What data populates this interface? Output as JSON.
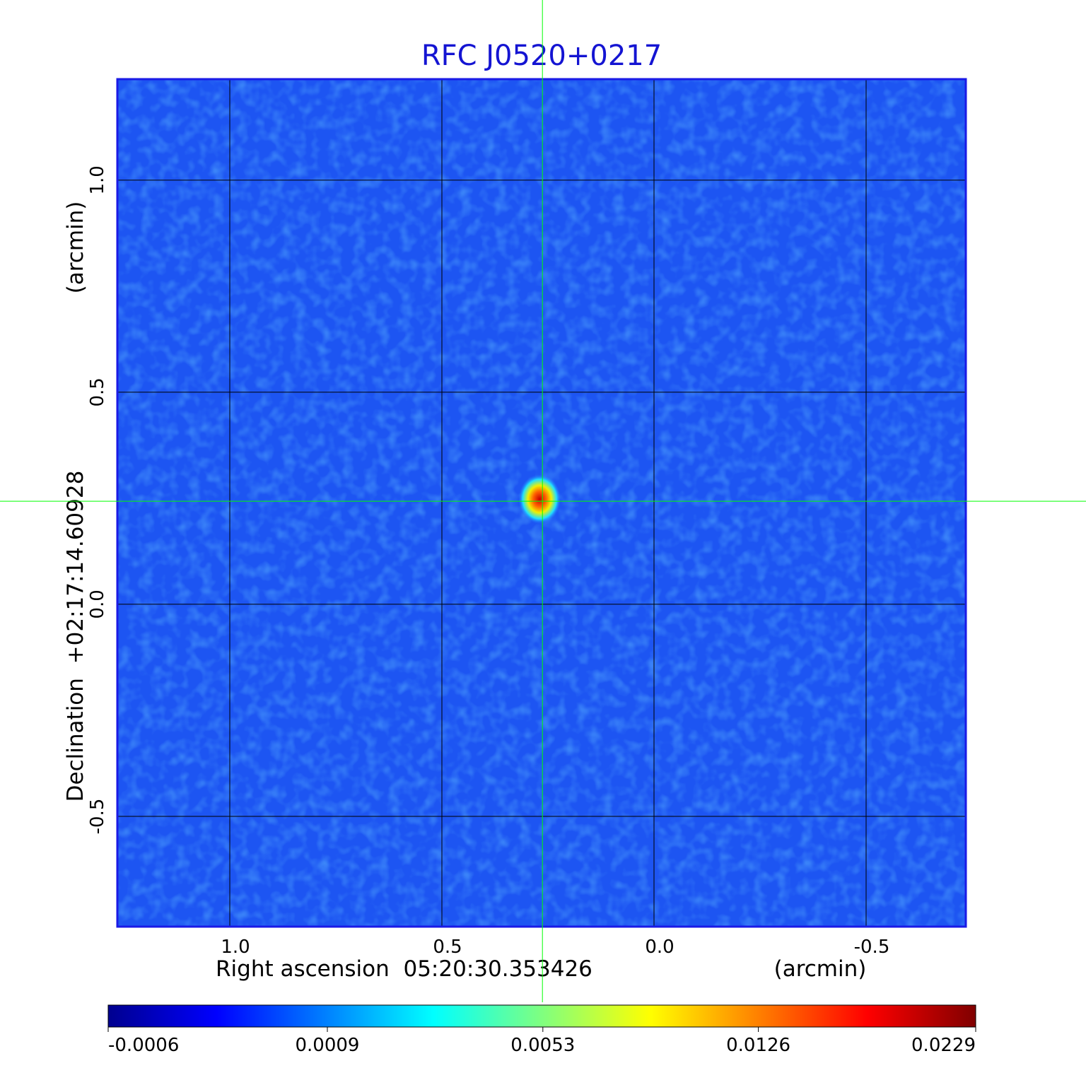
{
  "chart_data": {
    "type": "image",
    "title": "RFC J0520+0217",
    "xlabel": "Right ascension  05:20:30.353426",
    "xunit": "(arcmin)",
    "ylabel": "Declination  +02:17:14.60928",
    "yunit": "(arcmin)",
    "xlim": [
      1.265,
      -0.735
    ],
    "ylim": [
      -0.76,
      1.238
    ],
    "xticks": [
      {
        "value": 1,
        "label": "1.0"
      },
      0.5,
      {
        "value": 0,
        "label": "0.0"
      },
      -0.5
    ],
    "yticks": [
      {
        "value": 1,
        "label": "1.0"
      },
      0.5,
      {
        "value": 0,
        "label": "0.0"
      },
      -0.5
    ],
    "grid": true,
    "crosshair": {
      "x": 0.263,
      "y": 0.243,
      "color": "#00ff00"
    },
    "colorbar": {
      "clim": [
        -0.0006,
        0.0229
      ],
      "scale": "sqrt",
      "ticks": [
        -0.0006,
        0.0009,
        0.0053,
        0.0126,
        0.0229
      ],
      "colormap": "jet"
    }
  }
}
